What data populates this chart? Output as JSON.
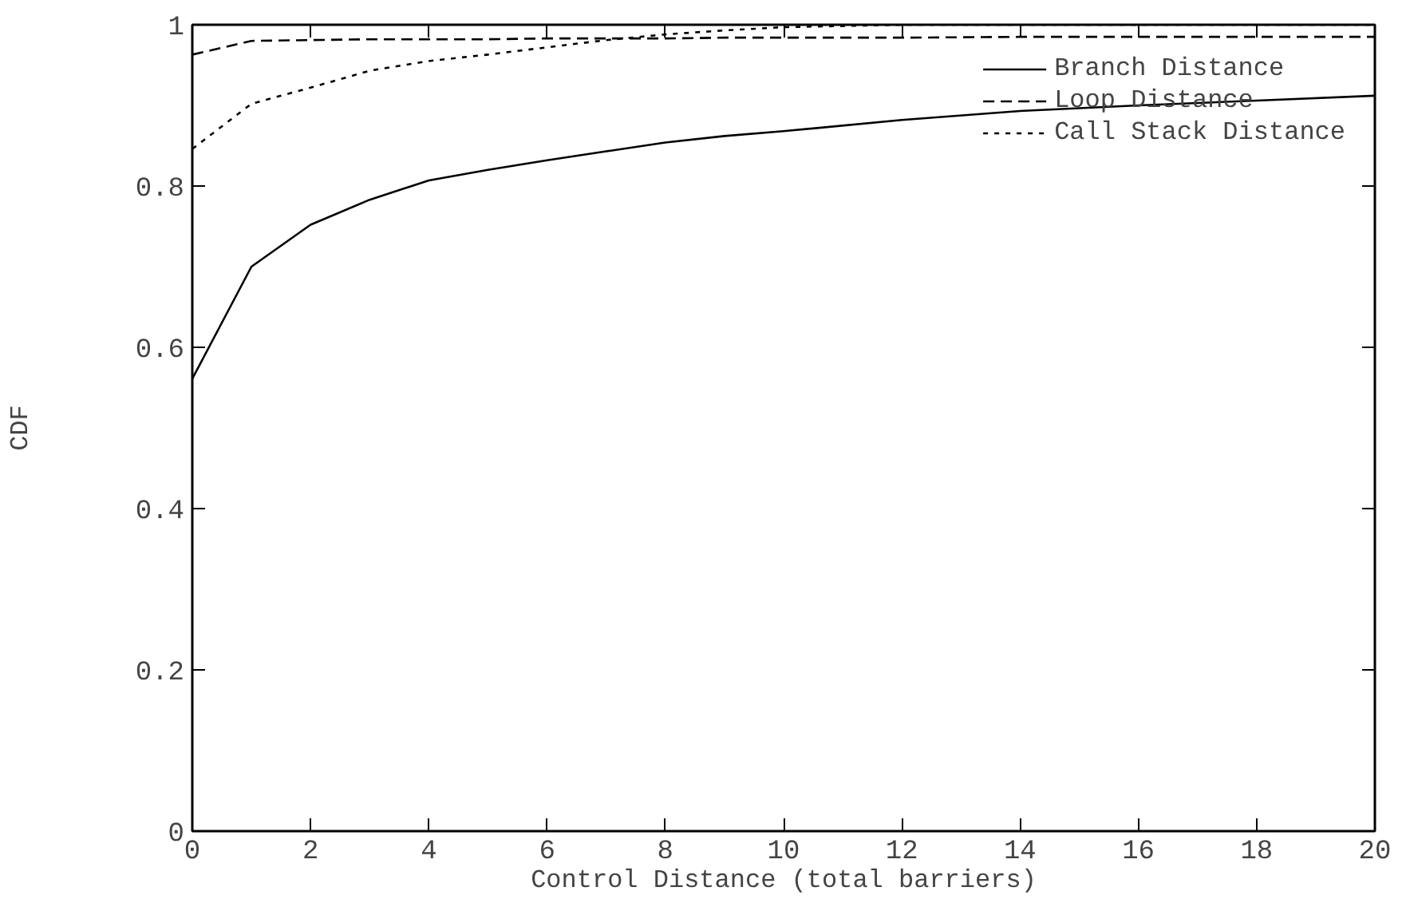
{
  "chart_data": {
    "type": "line",
    "xlabel": "Control Distance (total barriers)",
    "ylabel": "CDF",
    "x": [
      0,
      1,
      2,
      3,
      4,
      5,
      6,
      7,
      8,
      9,
      10,
      12,
      14,
      16,
      18,
      20
    ],
    "series": [
      {
        "name": "Branch Distance",
        "color": "#000000",
        "line_style": "solid",
        "values": [
          0.561,
          0.7,
          0.752,
          0.783,
          0.807,
          0.82,
          0.832,
          0.843,
          0.854,
          0.862,
          0.868,
          0.882,
          0.893,
          0.9,
          0.906,
          0.912
        ]
      },
      {
        "name": "Loop Distance",
        "color": "#000000",
        "line_style": "dashed",
        "values": [
          0.963,
          0.98,
          0.981,
          0.982,
          0.982,
          0.982,
          0.983,
          0.983,
          0.983,
          0.984,
          0.984,
          0.984,
          0.985,
          0.985,
          0.985,
          0.985
        ]
      },
      {
        "name": "Call Stack Distance",
        "color": "#000000",
        "line_style": "dotted",
        "values": [
          0.846,
          0.902,
          0.922,
          0.943,
          0.955,
          0.963,
          0.972,
          0.981,
          0.988,
          0.993,
          0.997,
          1.0,
          1.0,
          1.0,
          1.0,
          1.0
        ]
      }
    ],
    "xlim": [
      0,
      20
    ],
    "ylim": [
      0,
      1
    ],
    "xticks": [
      0,
      2,
      4,
      6,
      8,
      10,
      12,
      14,
      16,
      18,
      20
    ],
    "yticks": [
      0,
      0.2,
      0.4,
      0.6,
      0.8,
      1
    ],
    "grid": false,
    "legend": "top right",
    "marker": "none"
  }
}
